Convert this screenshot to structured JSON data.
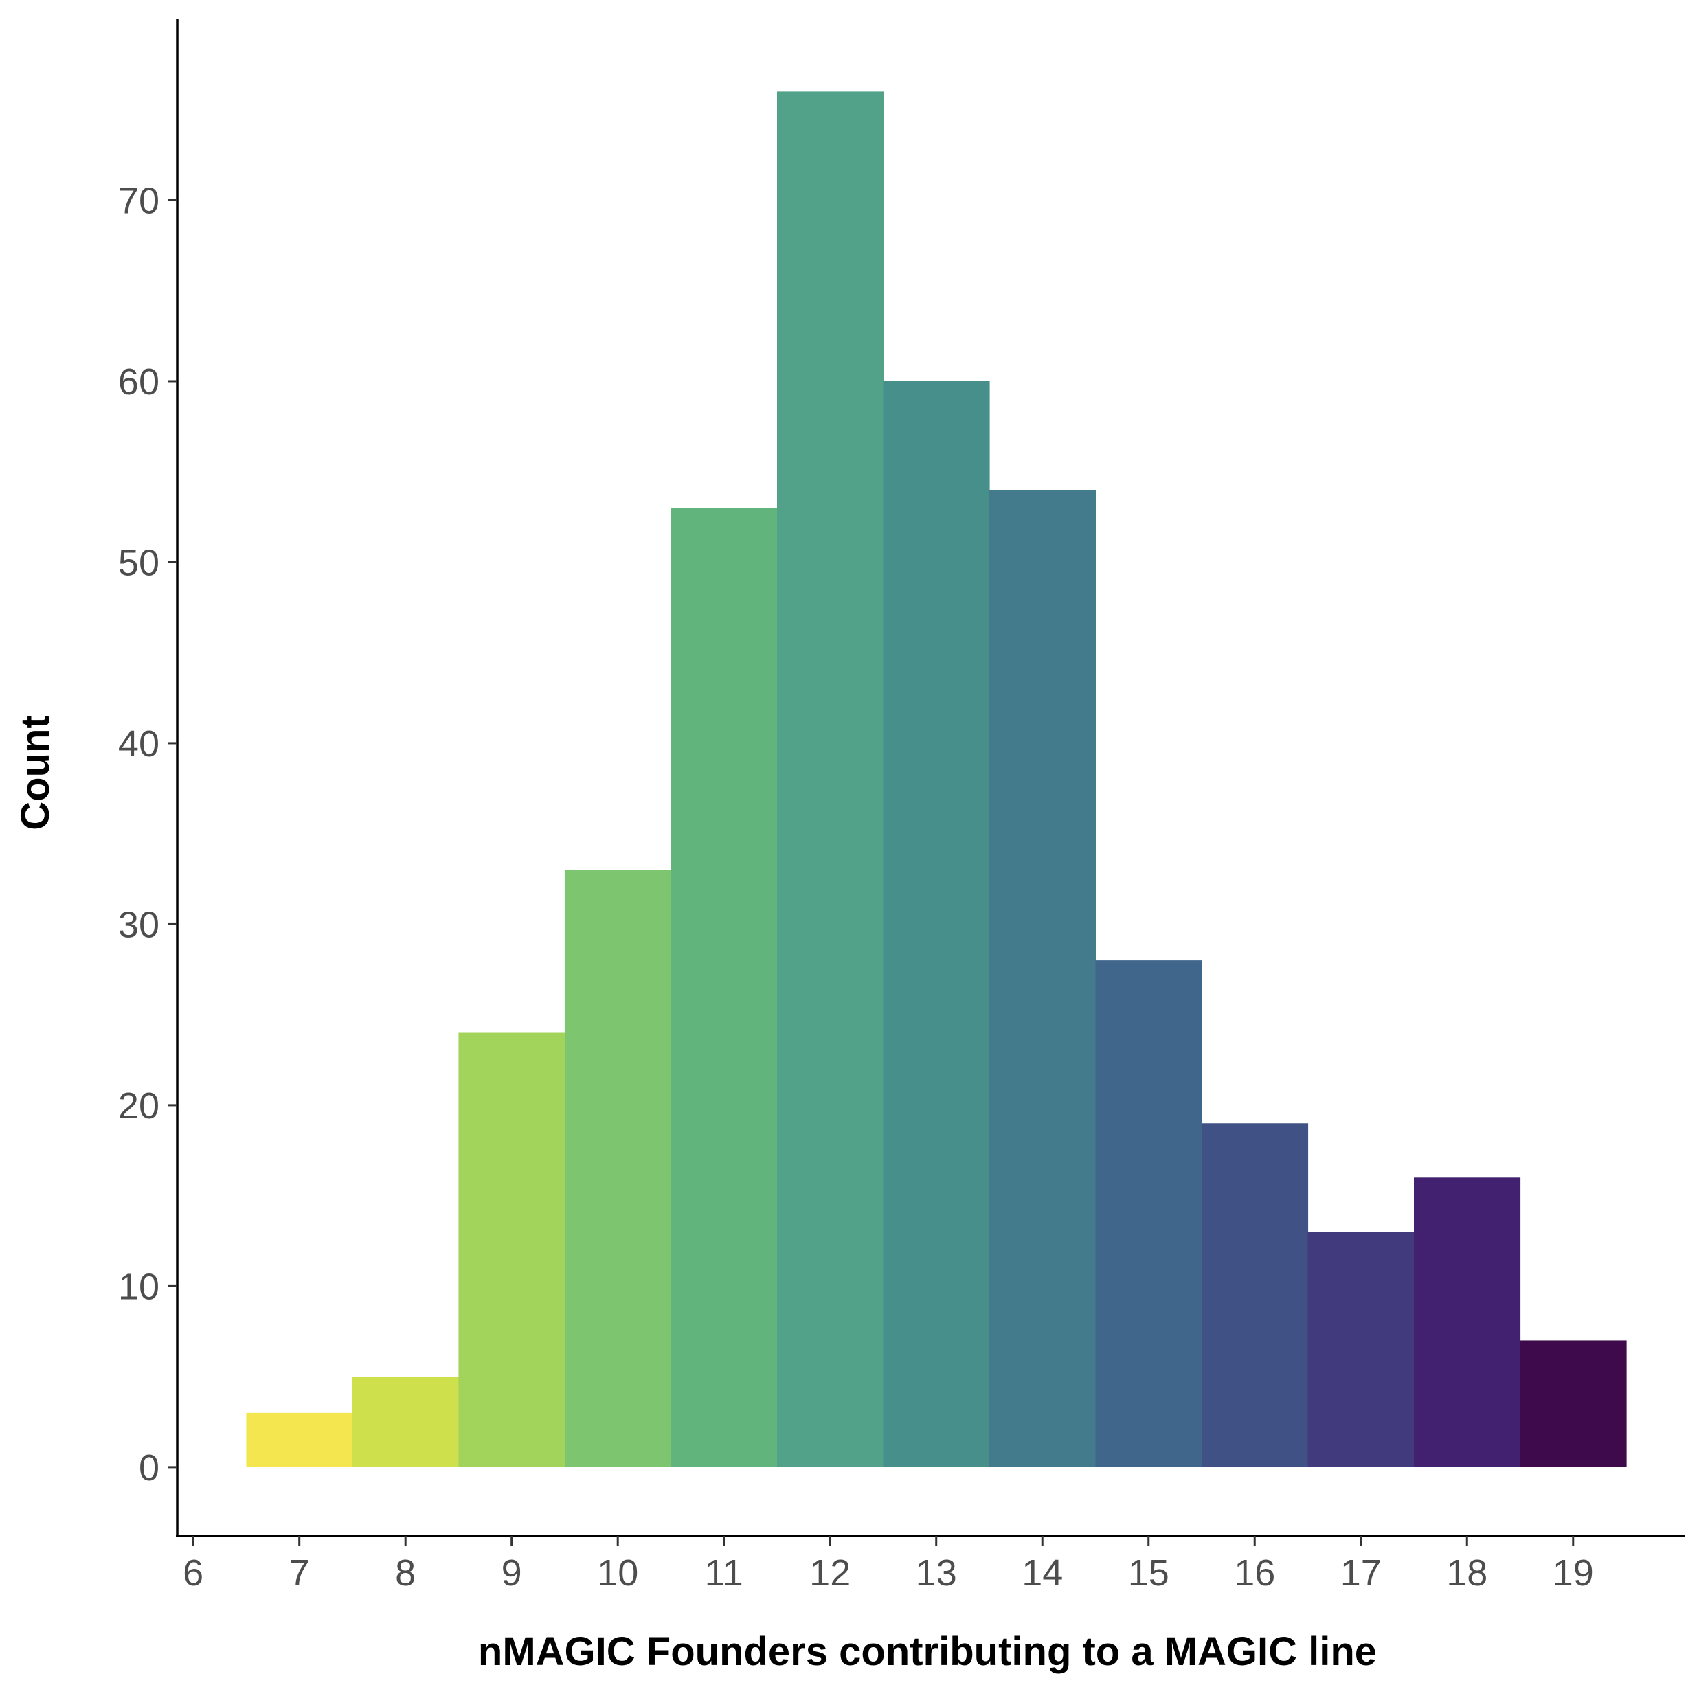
{
  "chart_data": {
    "type": "bar",
    "title": "",
    "xlabel": "nMAGIC Founders contributing to a MAGIC line",
    "ylabel": "Count",
    "categories": [
      7,
      8,
      9,
      10,
      11,
      12,
      13,
      14,
      15,
      16,
      17,
      18,
      19
    ],
    "values": [
      3,
      5,
      24,
      33,
      53,
      76,
      60,
      54,
      28,
      19,
      13,
      16,
      7
    ],
    "colors": [
      "#f3e64f",
      "#cfe04d",
      "#a2d45b",
      "#7dc66f",
      "#62b47d",
      "#51a288",
      "#478f8b",
      "#437a8c",
      "#41668b",
      "#405285",
      "#413b7e",
      "#432171",
      "#3e0a4c"
    ],
    "xlim": [
      5.85,
      20.05
    ],
    "ylim": [
      -3.8,
      80.0
    ],
    "x_ticks": [
      6,
      7,
      8,
      9,
      10,
      11,
      12,
      13,
      14,
      15,
      16,
      17,
      18,
      19
    ],
    "y_ticks": [
      0,
      10,
      20,
      30,
      40,
      50,
      60,
      70
    ],
    "grid": false,
    "legend": "none"
  }
}
